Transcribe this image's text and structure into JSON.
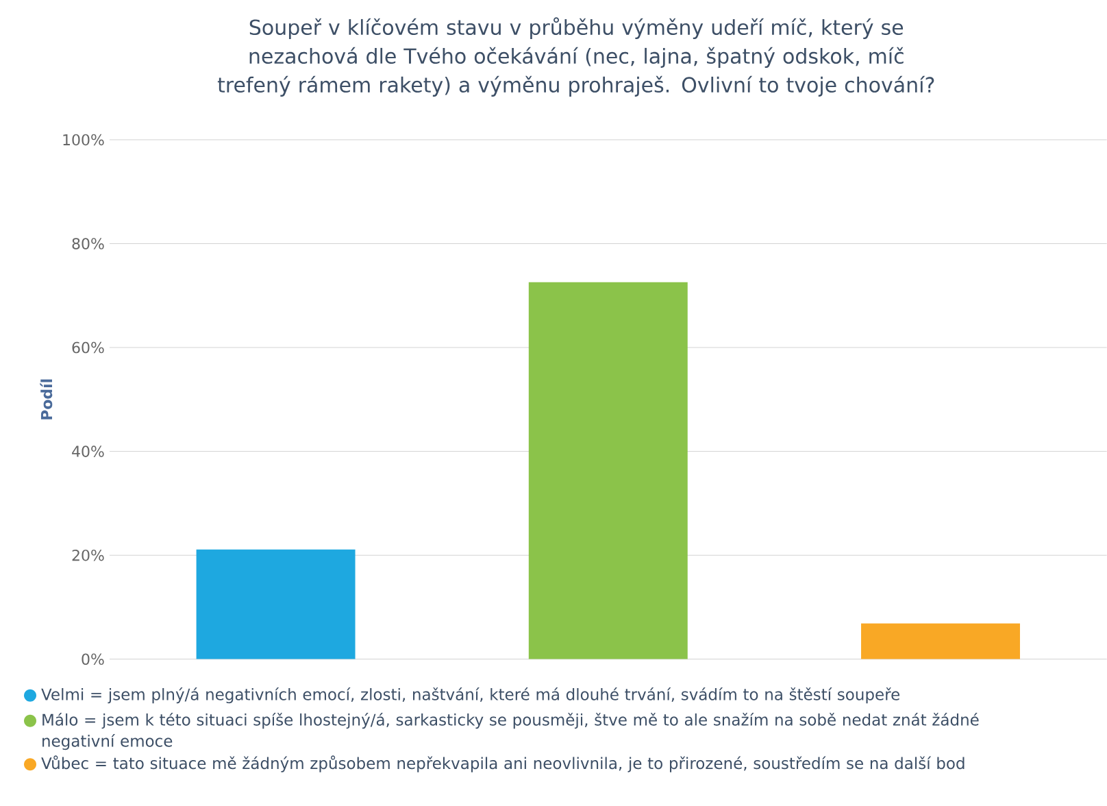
{
  "chart_data": {
    "type": "bar",
    "title": "Soupeř v klíčovém stavu v průběhu výměny udeří míč, který se nezachová dle Tvého očekávání (nec, lajna, špatný odskok, míč trefený rámem rakety) a výměnu prohraješ. Ovlivní to tvoje chování?",
    "ylabel": "Podíl",
    "categories": [
      null,
      null,
      null
    ],
    "series": [
      {
        "name": "Velmi = jsem plný/á negativních emocí, zlosti, naštvání, které má dlouhé trvání, svádím to na štěstí soupeře",
        "color": "#1ea8e0",
        "values": [
          21.1,
          null,
          null
        ]
      },
      {
        "name": "Málo = jsem k této situaci spíše lhostejný/á, sarkasticky se pousměji, štve mě to ale snažím na sobě nedat znát žádné negativní emoce",
        "color": "#8bc34a",
        "values": [
          null,
          72.6,
          null
        ]
      },
      {
        "name": "Vůbec = tato situace mě žádným způsobem nepřekvapila ani neovlivnila, je to přirozené, soustředím se na další bod",
        "color": "#f9a825",
        "values": [
          null,
          null,
          6.9
        ]
      }
    ],
    "ylim": [
      0,
      100
    ],
    "yticks": [
      {
        "value": 0,
        "label": "0%"
      },
      {
        "value": 20,
        "label": "20%"
      },
      {
        "value": 40,
        "label": "40%"
      },
      {
        "value": 60,
        "label": "60%"
      },
      {
        "value": 80,
        "label": "80%"
      },
      {
        "value": 100,
        "label": "100%"
      }
    ],
    "grid": "y",
    "legend": "bottom"
  }
}
